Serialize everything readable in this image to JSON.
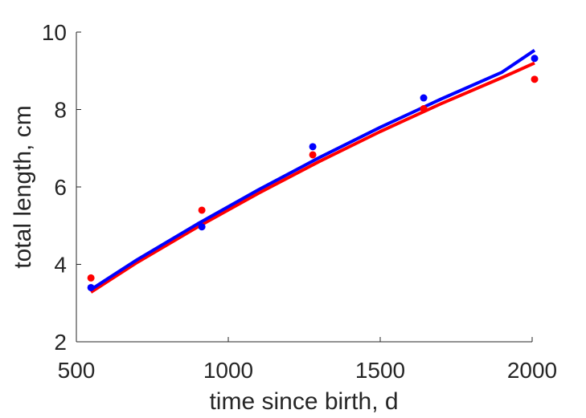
{
  "chart_data": {
    "type": "scatter",
    "title": "",
    "xlabel": "time since birth, d",
    "ylabel": "total length, cm",
    "xlim": [
      500,
      2000
    ],
    "ylim": [
      2,
      10
    ],
    "xticks": [
      500,
      1000,
      1500,
      2000
    ],
    "yticks": [
      2,
      4,
      6,
      8,
      10
    ],
    "grid": false,
    "series": [
      {
        "color": "#ff0000",
        "points": [
          {
            "x": 548,
            "y": 3.65
          },
          {
            "x": 913,
            "y": 5.4
          },
          {
            "x": 1278,
            "y": 6.83
          },
          {
            "x": 1643,
            "y": 8.02
          },
          {
            "x": 2008,
            "y": 8.78
          }
        ],
        "fit": [
          {
            "x": 548,
            "y": 3.28
          },
          {
            "x": 700,
            "y": 4.05
          },
          {
            "x": 900,
            "y": 4.97
          },
          {
            "x": 1100,
            "y": 5.84
          },
          {
            "x": 1300,
            "y": 6.66
          },
          {
            "x": 1500,
            "y": 7.43
          },
          {
            "x": 1700,
            "y": 8.15
          },
          {
            "x": 1900,
            "y": 8.82
          },
          {
            "x": 2008,
            "y": 9.2
          }
        ]
      },
      {
        "color": "#0000ff",
        "points": [
          {
            "x": 548,
            "y": 3.4
          },
          {
            "x": 913,
            "y": 4.97
          },
          {
            "x": 1278,
            "y": 7.04
          },
          {
            "x": 1643,
            "y": 8.3
          },
          {
            "x": 2008,
            "y": 9.32
          }
        ],
        "fit": [
          {
            "x": 548,
            "y": 3.35
          },
          {
            "x": 700,
            "y": 4.12
          },
          {
            "x": 900,
            "y": 5.05
          },
          {
            "x": 1100,
            "y": 5.93
          },
          {
            "x": 1300,
            "y": 6.76
          },
          {
            "x": 1500,
            "y": 7.54
          },
          {
            "x": 1700,
            "y": 8.27
          },
          {
            "x": 1900,
            "y": 8.96
          },
          {
            "x": 2008,
            "y": 9.53
          }
        ]
      }
    ]
  }
}
